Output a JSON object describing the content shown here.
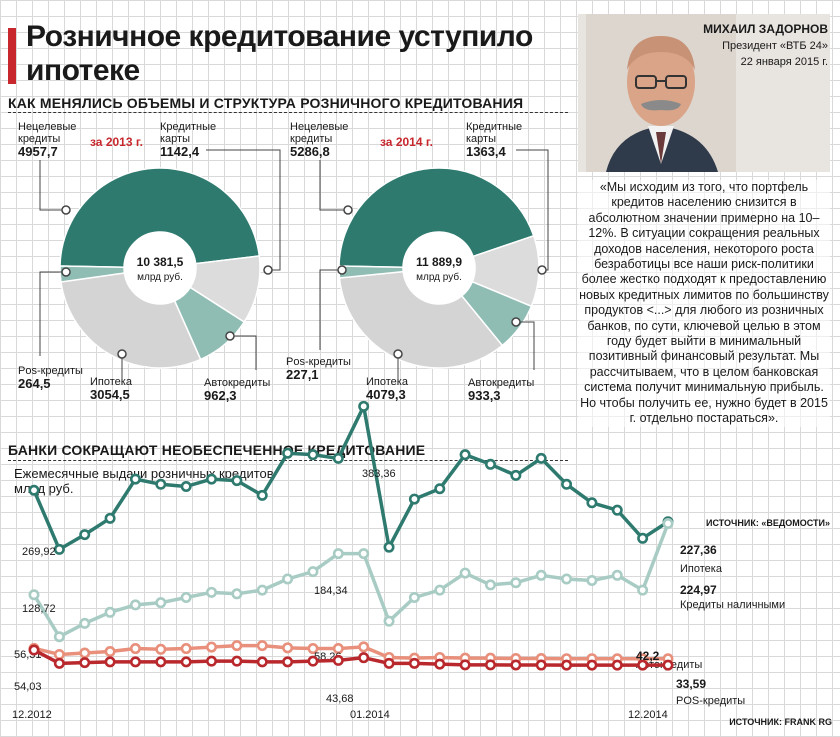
{
  "title": "Розничное кредитование уступило ипотеке",
  "sections": {
    "structure_title": "КАК МЕНЯЛИСЬ ОБЪЕМЫ И СТРУКТУРА РОЗНИЧНОГО КРЕДИТОВАНИЯ",
    "unsecured_title": "БАНКИ СОКРАЩАЮТ НЕОБЕСПЕЧЕННОЕ КРЕДИТОВАНИЕ"
  },
  "author": {
    "name": "МИХАИЛ ЗАДОРНОВ",
    "role": "Президент «ВТБ 24»",
    "date": "22 января 2015 г."
  },
  "quote": "«Мы исходим из того, что портфель кредитов населению снизится в абсолютном значении примерно на 10–12%. В ситуации сокращения реальных доходов населения, некоторого роста безработицы все наши риск-политики более жестко подходят к предоставлению новых кредитных лимитов по большинству продуктов <...> для любого из розничных банков, по сути, ключевой целью в этом году будет выйти в минимальный позитивный финансовый результат. Мы рассчитываем, что в целом банковская система получит минимальную прибыль. Но чтобы получить ее, нужно будет в 2015 г. отдельно постараться».",
  "quote_source": "ИСТОЧНИК: «ВЕДОМОСТИ»",
  "chart_source": "ИСТОЧНИК: FRANK RG",
  "colors": {
    "teal": "#2e7a6f",
    "mint": "#8fbcb3",
    "light_gray": "#d4d4d4",
    "cards_gray": "#dcdcdc",
    "red_dark": "#b8282c",
    "salmon": "#e8907c",
    "accent": "#c8282d"
  },
  "chart_data": [
    {
      "type": "pie",
      "variant": "donut",
      "period": "за 2013 г.",
      "center_value": "10 381,5",
      "center_unit": "млрд руб.",
      "slices": [
        {
          "name": "Нецелевые кредиты",
          "value": 4957.7,
          "label": "4957,7",
          "color": "#2e7a6f"
        },
        {
          "name": "Кредитные карты",
          "value": 1142.4,
          "label": "1142,4",
          "color": "#dcdcdc"
        },
        {
          "name": "Автокредиты",
          "value": 962.3,
          "label": "962,3",
          "color": "#8fbcb3"
        },
        {
          "name": "Ипотека",
          "value": 3054.5,
          "label": "3054,5",
          "color": "#d4d4d4"
        },
        {
          "name": "Pos-кредиты",
          "value": 264.5,
          "label": "264,5",
          "color": "#8fbcb3"
        }
      ]
    },
    {
      "type": "pie",
      "variant": "donut",
      "period": "за 2014 г.",
      "center_value": "11 889,9",
      "center_unit": "млрд руб.",
      "slices": [
        {
          "name": "Нецелевые кредиты",
          "value": 5286.8,
          "label": "5286,8",
          "color": "#2e7a6f"
        },
        {
          "name": "Кредитные карты",
          "value": 1363.4,
          "label": "1363,4",
          "color": "#dcdcdc"
        },
        {
          "name": "Автокредиты",
          "value": 933.3,
          "label": "933,3",
          "color": "#8fbcb3"
        },
        {
          "name": "Ипотека",
          "value": 4079.3,
          "label": "4079,3",
          "color": "#d4d4d4"
        },
        {
          "name": "Pos-кредиты",
          "value": 227.1,
          "label": "227,1",
          "color": "#8fbcb3"
        }
      ]
    },
    {
      "type": "line",
      "subtitle": "Ежемесячные выдачи розничных кредитов",
      "unit": "млрд руб.",
      "x_tick_labels": [
        "12.2012",
        "01.2014",
        "12.2014"
      ],
      "x_start": "12.2012",
      "x_end": "12.2014",
      "ylim": [
        0,
        400
      ],
      "series": [
        {
          "name": "Ипотека",
          "color": "#2e7a6f",
          "values": [
            269.92,
            190,
            210,
            232,
            285,
            278,
            275,
            285,
            283,
            263,
            320,
            318,
            313,
            383.36,
            193,
            258,
            272,
            318,
            305,
            290,
            313,
            278,
            253,
            243,
            205,
            227.36
          ],
          "labels": {
            "0": "269,92",
            "13": "383,36",
            "25": "227,36"
          }
        },
        {
          "name": "Кредиты наличными",
          "color": "#a8ccc4",
          "values": [
            128.72,
            72,
            90,
            105,
            115,
            118,
            125,
            132,
            130,
            135,
            150,
            160,
            184.34,
            184.34,
            93,
            125,
            135,
            158,
            142,
            145,
            155,
            150,
            148,
            155,
            135,
            224.97
          ],
          "labels": {
            "0": "128,72",
            "13": "184,34",
            "25": "224,97"
          }
        },
        {
          "name": "Автокредиты",
          "color": "#e8907c",
          "values": [
            56.31,
            48,
            50,
            52,
            56,
            55,
            56,
            58,
            60,
            60,
            57,
            56,
            56,
            58.26,
            44,
            43,
            44,
            43,
            43,
            42.5,
            42.5,
            42.3,
            42.3,
            42.2,
            42.2,
            42.2
          ],
          "labels": {
            "0": "56,31",
            "13": "58,26",
            "25": "42,2"
          }
        },
        {
          "name": "POS-кредиты",
          "color": "#b8282c",
          "values": [
            54.03,
            36,
            37,
            38,
            38,
            38,
            38,
            39,
            39,
            38,
            38,
            39,
            40,
            43.68,
            36,
            36,
            35,
            34,
            34,
            33.8,
            33.7,
            33.6,
            33.6,
            33.6,
            33.6,
            33.59
          ],
          "labels": {
            "0": "54,03",
            "13": "43,68",
            "25": "33,59"
          }
        }
      ]
    }
  ]
}
